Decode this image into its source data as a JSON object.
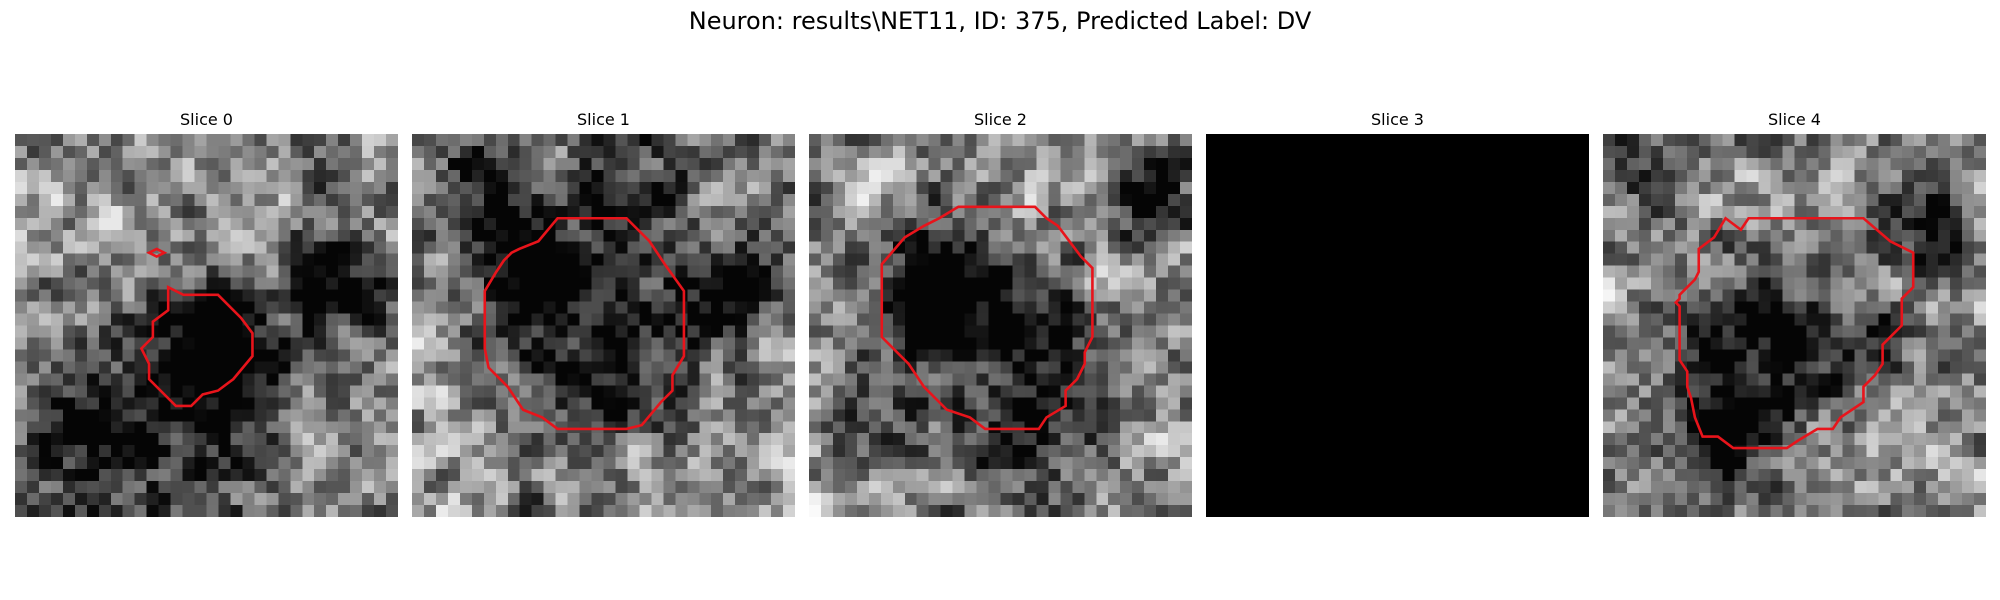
{
  "figure": {
    "title": "Neuron: results\\NET11, ID: 375, Predicted Label: DV"
  },
  "panels": [
    {
      "title": "Slice 0",
      "seed": 11,
      "blank": false,
      "dark_blobs": [
        [
          0.53,
          0.55,
          0.16,
          0.9
        ],
        [
          0.42,
          0.82,
          0.28,
          0.35
        ],
        [
          0.15,
          0.72,
          0.22,
          0.3
        ],
        [
          0.88,
          0.45,
          0.15,
          0.45
        ],
        [
          0.78,
          0.35,
          0.1,
          0.35
        ]
      ],
      "contours": [
        [
          [
            0.4,
            0.4
          ],
          [
            0.44,
            0.42
          ],
          [
            0.53,
            0.42
          ],
          [
            0.59,
            0.48
          ],
          [
            0.62,
            0.52
          ],
          [
            0.62,
            0.58
          ],
          [
            0.57,
            0.64
          ],
          [
            0.53,
            0.67
          ],
          [
            0.49,
            0.68
          ],
          [
            0.46,
            0.71
          ],
          [
            0.42,
            0.71
          ],
          [
            0.38,
            0.67
          ],
          [
            0.35,
            0.64
          ],
          [
            0.35,
            0.6
          ],
          [
            0.33,
            0.56
          ],
          [
            0.36,
            0.53
          ],
          [
            0.36,
            0.49
          ],
          [
            0.4,
            0.46
          ]
        ],
        [
          [
            0.37,
            0.3
          ],
          [
            0.39,
            0.31
          ],
          [
            0.37,
            0.32
          ],
          [
            0.35,
            0.31
          ]
        ]
      ]
    },
    {
      "title": "Slice 1",
      "seed": 23,
      "blank": false,
      "dark_blobs": [
        [
          0.48,
          0.52,
          0.26,
          0.55
        ],
        [
          0.3,
          0.35,
          0.1,
          0.6
        ],
        [
          0.85,
          0.4,
          0.12,
          0.5
        ],
        [
          0.2,
          0.15,
          0.15,
          0.45
        ],
        [
          0.6,
          0.1,
          0.18,
          0.3
        ]
      ],
      "contours": [
        [
          [
            0.33,
            0.28
          ],
          [
            0.38,
            0.22
          ],
          [
            0.56,
            0.22
          ],
          [
            0.62,
            0.28
          ],
          [
            0.66,
            0.34
          ],
          [
            0.71,
            0.41
          ],
          [
            0.71,
            0.58
          ],
          [
            0.68,
            0.63
          ],
          [
            0.68,
            0.67
          ],
          [
            0.65,
            0.7
          ],
          [
            0.6,
            0.76
          ],
          [
            0.56,
            0.77
          ],
          [
            0.38,
            0.77
          ],
          [
            0.34,
            0.74
          ],
          [
            0.29,
            0.72
          ],
          [
            0.25,
            0.66
          ],
          [
            0.2,
            0.61
          ],
          [
            0.19,
            0.56
          ],
          [
            0.19,
            0.41
          ],
          [
            0.22,
            0.36
          ],
          [
            0.24,
            0.33
          ],
          [
            0.26,
            0.31
          ],
          [
            0.28,
            0.3
          ]
        ]
      ]
    },
    {
      "title": "Slice 2",
      "seed": 37,
      "blank": false,
      "dark_blobs": [
        [
          0.3,
          0.42,
          0.14,
          0.7
        ],
        [
          0.5,
          0.48,
          0.22,
          0.45
        ],
        [
          0.9,
          0.18,
          0.1,
          0.6
        ],
        [
          0.6,
          0.78,
          0.2,
          0.35
        ],
        [
          0.15,
          0.72,
          0.15,
          0.35
        ]
      ],
      "contours": [
        [
          [
            0.34,
            0.22
          ],
          [
            0.39,
            0.19
          ],
          [
            0.59,
            0.19
          ],
          [
            0.62,
            0.22
          ],
          [
            0.65,
            0.24
          ],
          [
            0.71,
            0.32
          ],
          [
            0.74,
            0.35
          ],
          [
            0.74,
            0.53
          ],
          [
            0.72,
            0.57
          ],
          [
            0.72,
            0.6
          ],
          [
            0.7,
            0.64
          ],
          [
            0.67,
            0.67
          ],
          [
            0.67,
            0.71
          ],
          [
            0.62,
            0.74
          ],
          [
            0.6,
            0.77
          ],
          [
            0.46,
            0.77
          ],
          [
            0.42,
            0.74
          ],
          [
            0.36,
            0.72
          ],
          [
            0.3,
            0.66
          ],
          [
            0.26,
            0.6
          ],
          [
            0.19,
            0.53
          ],
          [
            0.19,
            0.34
          ],
          [
            0.25,
            0.27
          ],
          [
            0.3,
            0.24
          ]
        ]
      ]
    },
    {
      "title": "Slice 3",
      "seed": 0,
      "blank": true,
      "dark_blobs": [],
      "contours": []
    },
    {
      "title": "Slice 4",
      "seed": 53,
      "blank": false,
      "dark_blobs": [
        [
          0.42,
          0.55,
          0.22,
          0.5
        ],
        [
          0.32,
          0.8,
          0.12,
          0.75
        ],
        [
          0.88,
          0.25,
          0.12,
          0.55
        ],
        [
          0.75,
          0.55,
          0.1,
          0.3
        ],
        [
          0.1,
          0.12,
          0.1,
          0.3
        ]
      ],
      "contours": [
        [
          [
            0.32,
            0.22
          ],
          [
            0.36,
            0.25
          ],
          [
            0.38,
            0.22
          ],
          [
            0.68,
            0.22
          ],
          [
            0.75,
            0.28
          ],
          [
            0.81,
            0.31
          ],
          [
            0.81,
            0.4
          ],
          [
            0.78,
            0.43
          ],
          [
            0.78,
            0.5
          ],
          [
            0.73,
            0.55
          ],
          [
            0.73,
            0.6
          ],
          [
            0.71,
            0.63
          ],
          [
            0.68,
            0.66
          ],
          [
            0.68,
            0.7
          ],
          [
            0.65,
            0.72
          ],
          [
            0.62,
            0.74
          ],
          [
            0.6,
            0.77
          ],
          [
            0.56,
            0.77
          ],
          [
            0.51,
            0.8
          ],
          [
            0.48,
            0.82
          ],
          [
            0.34,
            0.82
          ],
          [
            0.3,
            0.79
          ],
          [
            0.26,
            0.79
          ],
          [
            0.24,
            0.74
          ],
          [
            0.23,
            0.69
          ],
          [
            0.22,
            0.66
          ],
          [
            0.22,
            0.62
          ],
          [
            0.2,
            0.59
          ],
          [
            0.2,
            0.45
          ],
          [
            0.19,
            0.44
          ],
          [
            0.2,
            0.43
          ],
          [
            0.2,
            0.42
          ],
          [
            0.22,
            0.4
          ],
          [
            0.24,
            0.38
          ],
          [
            0.25,
            0.36
          ],
          [
            0.25,
            0.3
          ],
          [
            0.29,
            0.27
          ]
        ]
      ]
    }
  ],
  "colors": {
    "contour": "#e8141b",
    "background": "#ffffff",
    "blank_slice": "#000000"
  }
}
